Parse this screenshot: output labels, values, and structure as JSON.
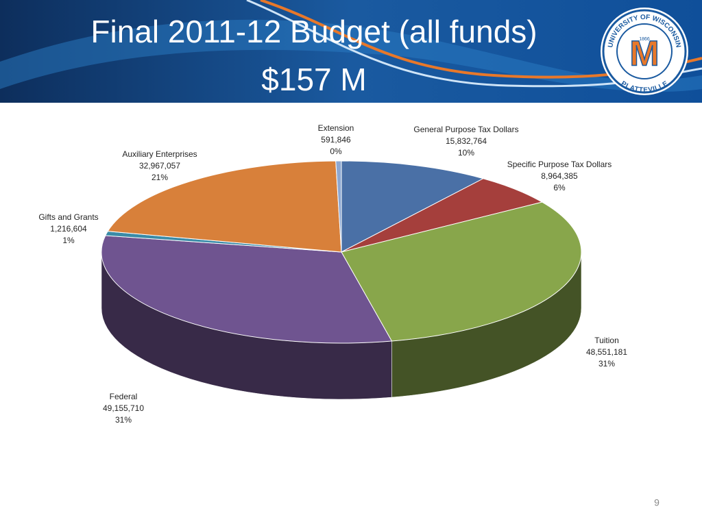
{
  "chart_data": {
    "type": "pie",
    "title": "Final 2011-12 Budget (all funds)",
    "subtitle": "$157 M",
    "categories": [
      "General Purpose Tax Dollars",
      "Specific Purpose Tax Dollars",
      "Tuition",
      "Federal",
      "Gifts and Grants",
      "Auxiliary Enterprises",
      "Extension"
    ],
    "values": [
      15832764,
      8964385,
      48551181,
      49155710,
      1216604,
      32967057,
      591846
    ],
    "value_labels": [
      "15,832,764",
      "8,964,385",
      "48,551,181",
      "49,155,710",
      "1,216,604",
      "32,967,057",
      "591,846"
    ],
    "percent_labels": [
      "10%",
      "6%",
      "31%",
      "31%",
      "1%",
      "21%",
      "0%"
    ],
    "colors": [
      "#4a70a6",
      "#a53f3c",
      "#88a64b",
      "#6f5490",
      "#3b8ba7",
      "#d8803a",
      "#8ea8d2"
    ]
  },
  "logo": {
    "top_text": "UNIVERSITY OF WISCONSIN",
    "bottom_text": "PLATTEVILLE",
    "year": "1866",
    "letter": "M"
  },
  "page_number": "9"
}
